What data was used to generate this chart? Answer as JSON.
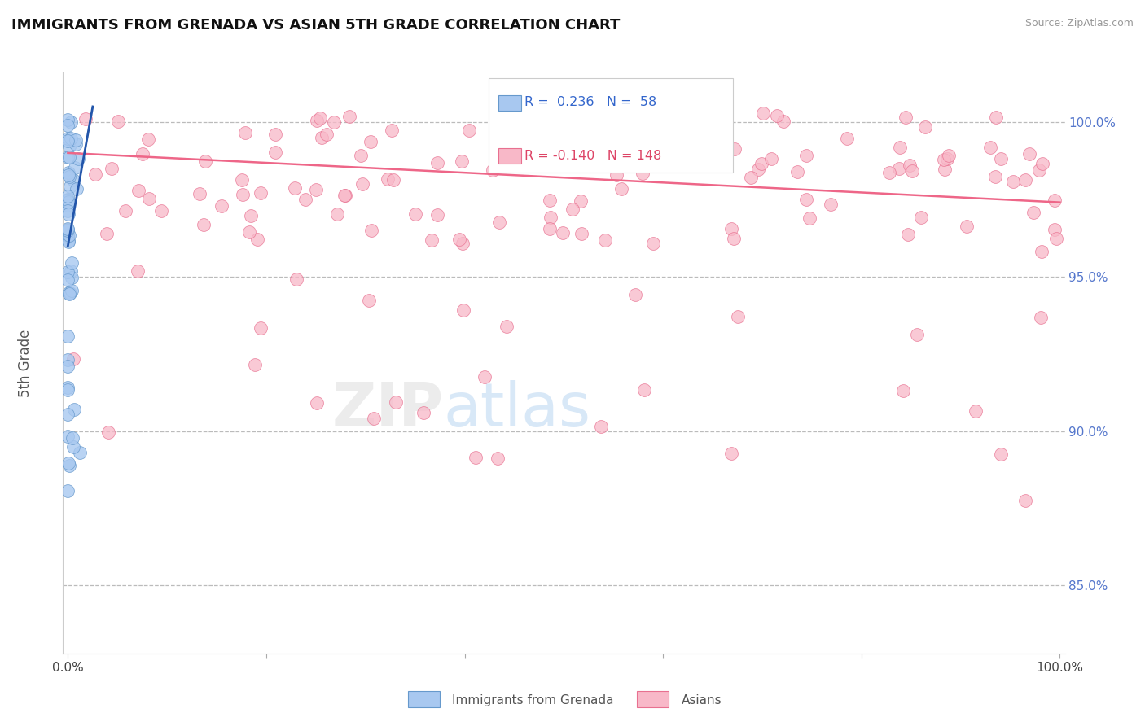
{
  "title": "IMMIGRANTS FROM GRENADA VS ASIAN 5TH GRADE CORRELATION CHART",
  "source_text": "Source: ZipAtlas.com",
  "ylabel": "5th Grade",
  "legend_label1": "Immigrants from Grenada",
  "legend_label2": "Asians",
  "R1": 0.236,
  "N1": 58,
  "R2": -0.14,
  "N2": 148,
  "color_blue_fill": "#A8C8F0",
  "color_blue_edge": "#6699CC",
  "color_pink_fill": "#F8B8C8",
  "color_pink_edge": "#E87090",
  "color_trend_blue": "#2255AA",
  "color_trend_pink": "#EE6688",
  "color_grid": "#BBBBBB",
  "color_title": "#111111",
  "color_source": "#999999",
  "color_legend_text_blue": "#3366CC",
  "color_legend_text_pink": "#DD4466",
  "color_axis_label": "#555555",
  "color_right_labels": "#5577CC",
  "background_color": "#FFFFFF",
  "y_tick_values": [
    0.85,
    0.9,
    0.95,
    1.0
  ],
  "ylim_min": 0.828,
  "ylim_max": 1.016,
  "xlim_min": -0.005,
  "xlim_max": 1.005
}
